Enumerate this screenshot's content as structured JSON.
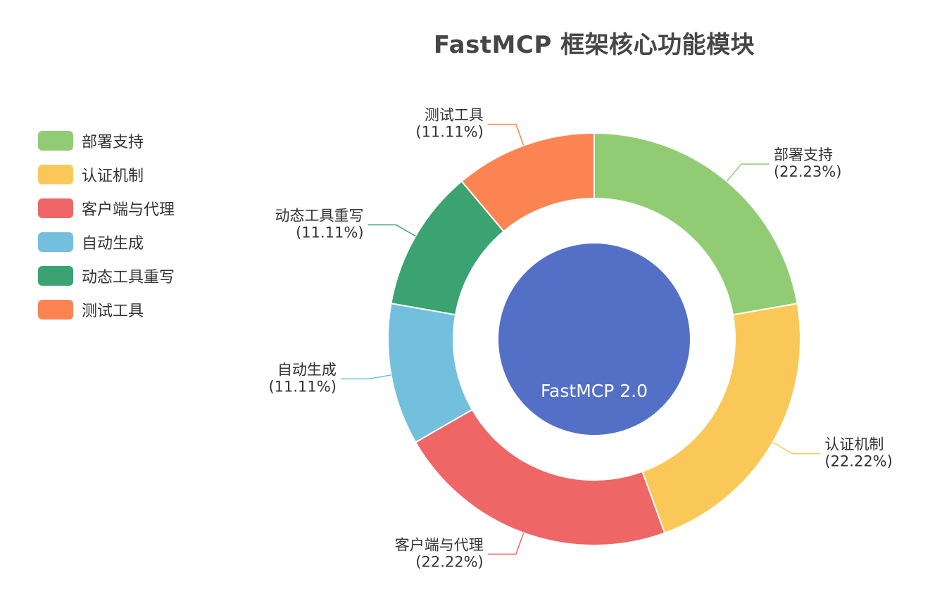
{
  "chart_data": {
    "type": "pie",
    "title": "FastMCP 框架核心功能模块",
    "center_label": "FastMCP 2.0",
    "center_color": "#5470c6",
    "legend_placement": "left",
    "slices": [
      {
        "name": "部署支持",
        "value": 22.23,
        "label": "(22.23%)",
        "color": "#91cc75"
      },
      {
        "name": "认证机制",
        "value": 22.22,
        "label": "(22.22%)",
        "color": "#fac858"
      },
      {
        "name": "客户端与代理",
        "value": 22.22,
        "label": "(22.22%)",
        "color": "#ee6666"
      },
      {
        "name": "自动生成",
        "value": 11.11,
        "label": "(11.11%)",
        "color": "#73c0de"
      },
      {
        "name": "动态工具重写",
        "value": 11.11,
        "label": "(11.11%)",
        "color": "#3ba272"
      },
      {
        "name": "测试工具",
        "value": 11.11,
        "label": "(11.11%)",
        "color": "#fc8452"
      }
    ]
  }
}
